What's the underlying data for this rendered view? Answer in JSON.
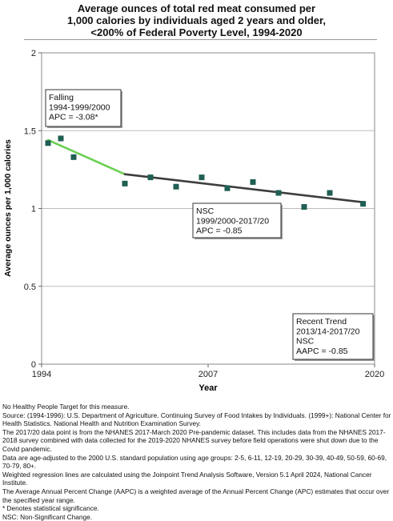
{
  "title_lines": [
    "Average ounces of total red meat consumed per",
    "1,000 calories by individuals aged 2 years and older,",
    "<200% of Federal Poverty Level,  1994-2020"
  ],
  "chart_data": {
    "type": "scatter",
    "xlabel": "Year",
    "ylabel": "Average ounces per 1,000 calories",
    "xlim": [
      1994,
      2020
    ],
    "ylim": [
      0,
      2
    ],
    "x_ticks": [
      1994,
      2007,
      2020
    ],
    "x_tick_labels": [
      "1994",
      "2007",
      "2020"
    ],
    "y_ticks": [
      0,
      0.5,
      1,
      1.5,
      2
    ],
    "y_tick_labels": [
      "0",
      "0.5",
      "1",
      "1.5",
      "2"
    ],
    "grid": "horizontal",
    "points": [
      {
        "x": 1994.5,
        "y": 1.42
      },
      {
        "x": 1995.5,
        "y": 1.45
      },
      {
        "x": 1996.5,
        "y": 1.33
      },
      {
        "x": 2000.5,
        "y": 1.16
      },
      {
        "x": 2002.5,
        "y": 1.2
      },
      {
        "x": 2004.5,
        "y": 1.14
      },
      {
        "x": 2006.5,
        "y": 1.2
      },
      {
        "x": 2008.5,
        "y": 1.13
      },
      {
        "x": 2010.5,
        "y": 1.17
      },
      {
        "x": 2012.5,
        "y": 1.1
      },
      {
        "x": 2014.5,
        "y": 1.01
      },
      {
        "x": 2016.5,
        "y": 1.1
      },
      {
        "x": 2019.1,
        "y": 1.03
      }
    ],
    "trend_segments": [
      {
        "from": [
          1994.5,
          1.44
        ],
        "to": [
          2000.5,
          1.22
        ],
        "color": "#6ccf55"
      },
      {
        "from": [
          2000.5,
          1.22
        ],
        "to": [
          2019.1,
          1.04
        ],
        "color": "#3d3d3d"
      }
    ],
    "marker_color": "#1f5f54",
    "annotations": [
      {
        "lines": [
          "Falling",
          "1994-1999/2000",
          "APC = -3.08*"
        ]
      },
      {
        "lines": [
          "NSC",
          "1999/2000-2017/20",
          "APC = -0.85"
        ]
      },
      {
        "lines": [
          "Recent Trend",
          "2013/14-2017/20",
          "NSC",
          "AAPC = -0.85"
        ]
      }
    ]
  },
  "notes": [
    "No Healthy People Target for this measure.",
    "Source: (1994-1996): U.S. Department of Agriculture. Continuing Survey of Food Intakes by Individuals. (1999+): National Center for Health Statistics. National Health and Nutrition Examination Survey.",
    "The 2017/20 data point is from the NHANES 2017-March 2020 Pre-pandemic dataset. This includes data from the NHANES 2017-2018 survey combined with data collected for the 2019-2020 NHANES survey before field operations were shut down due to the Covid pandemic.",
    "Data are age-adjusted to the 2000 U.S. standard population using age groups: 2-5, 6-11, 12-19, 20-29, 30-39, 40-49, 50-59, 60-69, 70-79, 80+.",
    "Weighted regression lines are calculated using the Joinpoint Trend Analysis Software, Version 5.1 April 2024, National Cancer Institute.",
    "The Average Annual Percent Change (AAPC) is a weighted average of the Annual Percent Change (APC) estimates that occur over the specified year range.",
    "* Denotes statistical significance.",
    "NSC: Non-Significant Change."
  ]
}
